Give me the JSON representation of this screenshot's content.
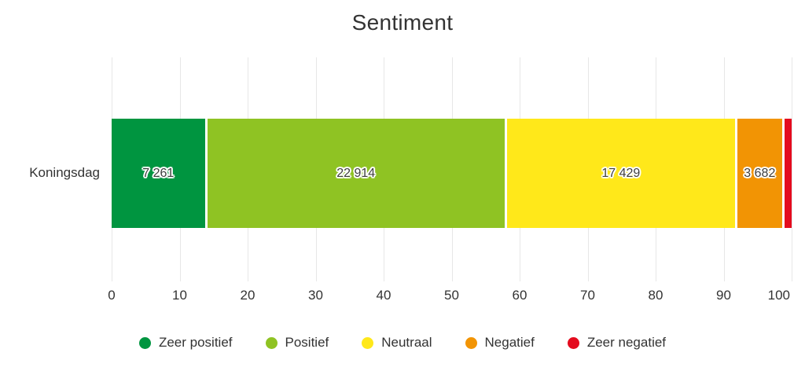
{
  "chart_data": {
    "type": "bar",
    "stacked": true,
    "orientation": "horizontal",
    "title": "Sentiment",
    "categories": [
      "Koningsdag"
    ],
    "series": [
      {
        "name": "Zeer positief",
        "value": 7261,
        "value_label": "7 261",
        "color": "#009540",
        "axis_span_pct": 13.7
      },
      {
        "name": "Positief",
        "value": 22914,
        "value_label": "22 914",
        "color": "#8fc323",
        "axis_span_pct": 44.1
      },
      {
        "name": "Neutraal",
        "value": 17429,
        "value_label": "17 429",
        "color": "#ffe81a",
        "axis_span_pct": 33.85
      },
      {
        "name": "Negatief",
        "value": 3682,
        "value_label": "3 682",
        "color": "#f29404",
        "axis_span_pct": 6.95
      },
      {
        "name": "Zeer negatief",
        "value": null,
        "value_label": "",
        "color": "#e40b1e",
        "axis_span_pct": 1.4
      }
    ],
    "xlabel": "",
    "ylabel": "",
    "xlim": [
      0,
      100
    ],
    "x_ticks": [
      0,
      10,
      20,
      30,
      40,
      50,
      60,
      70,
      80,
      90,
      100
    ],
    "grid": true,
    "gridline_color": "#e7e7e7",
    "legend_position": "bottom"
  }
}
